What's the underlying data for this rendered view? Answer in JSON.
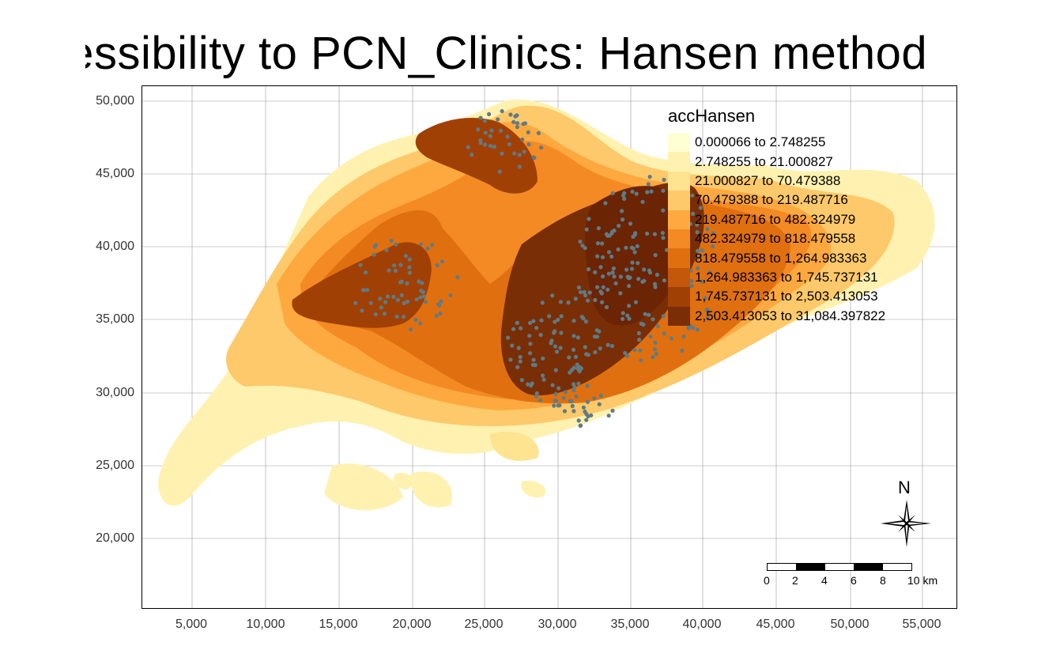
{
  "title": "Accessibility to PCN_Clinics: Hansen method",
  "legend": {
    "title": "accHansen",
    "items": [
      {
        "label": "0.000066 to 2.748255",
        "color": "#ffffd4"
      },
      {
        "label": "2.748255 to 21.000827",
        "color": "#fff1b0"
      },
      {
        "label": "21.000827 to 70.479388",
        "color": "#fee391"
      },
      {
        "label": "70.479388 to 219.487716",
        "color": "#fec96a"
      },
      {
        "label": "219.487716 to 482.324979",
        "color": "#fea93f"
      },
      {
        "label": "482.324979 to 818.479558",
        "color": "#f48a24"
      },
      {
        "label": "818.479558 to 1,264.983363",
        "color": "#e0700f"
      },
      {
        "label": "1,264.983363 to 1,745.737131",
        "color": "#c45709"
      },
      {
        "label": "1,745.737131 to 2,503.413053",
        "color": "#a14005"
      },
      {
        "label": "2,503.413053 to 31,084.397822",
        "color": "#7a2e05"
      }
    ]
  },
  "y_axis": {
    "ticks": [
      "50,000",
      "45,000",
      "40,000",
      "35,000",
      "30,000",
      "25,000",
      "20,000"
    ]
  },
  "x_axis": {
    "ticks": [
      "5,000",
      "10,000",
      "15,000",
      "20,000",
      "25,000",
      "30,000",
      "35,000",
      "40,000",
      "45,000",
      "50,000",
      "55,000"
    ]
  },
  "scale_bar": {
    "labels": [
      "0",
      "2",
      "4",
      "6",
      "8",
      "10 km"
    ]
  },
  "north_arrow": {
    "label": "N"
  },
  "colors": {
    "clinic_point": "#5f7b85",
    "grid": "#9a9a9a"
  }
}
